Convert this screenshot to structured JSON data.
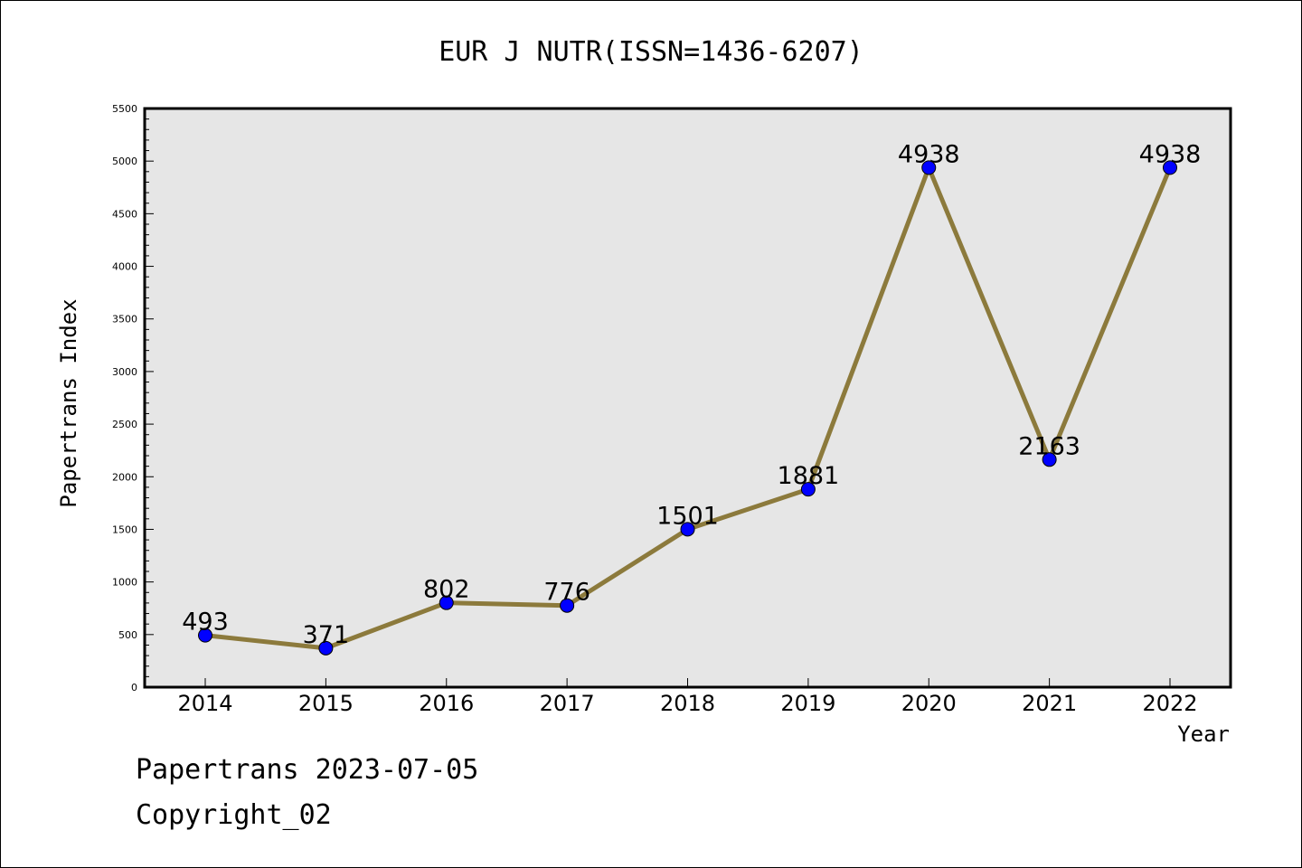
{
  "chart_data": {
    "type": "line",
    "title": "EUR J NUTR(ISSN=1436-6207)",
    "xlabel": "Year",
    "ylabel": "Papertrans Index",
    "categories": [
      "2014",
      "2015",
      "2016",
      "2017",
      "2018",
      "2019",
      "2020",
      "2021",
      "2022"
    ],
    "series": [
      {
        "values": [
          493,
          371,
          802,
          776,
          1501,
          1881,
          4938,
          2163,
          4938
        ]
      }
    ],
    "data_labels": [
      "493",
      "371",
      "802",
      "776",
      "1501",
      "1881",
      "4938",
      "2163",
      "4938"
    ],
    "ylim": [
      0,
      5500
    ],
    "y_ticks": [
      "0",
      "500",
      "1000",
      "1500",
      "2000",
      "2500",
      "3000",
      "3500",
      "4000",
      "4500",
      "5000",
      "5500"
    ],
    "grid": false,
    "legend": "none",
    "colors": {
      "line": "#8c7a3c",
      "marker": "#0000ff",
      "plot_background": "#e6e6e6"
    }
  },
  "footer": {
    "date_line": "Papertrans 2023-07-05",
    "copyright_line": "Copyright_02"
  }
}
